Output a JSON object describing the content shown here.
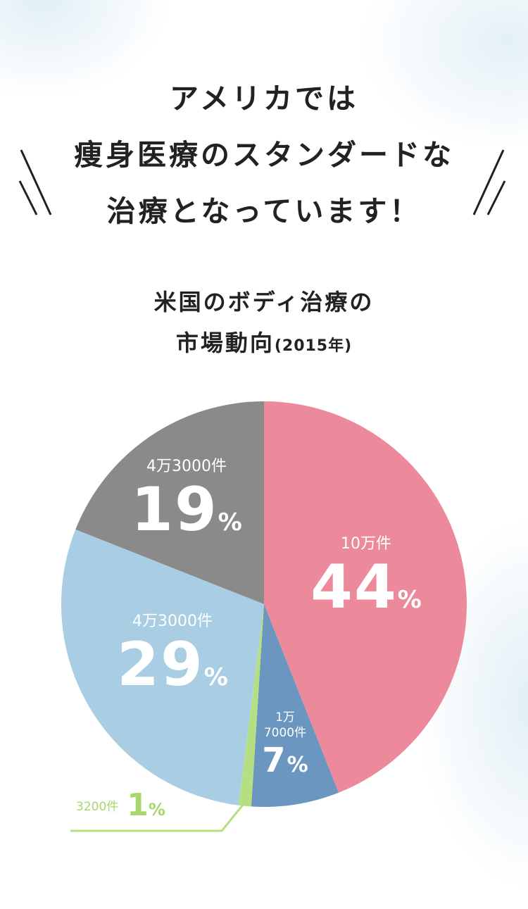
{
  "headline": {
    "line1": "アメリカでは",
    "line2": "痩身医療のスタンダードな",
    "line3": "治療となっています！"
  },
  "chart_title": {
    "line1": "米国のボディ治療の",
    "line2": "市場動向",
    "year": "(2015年)"
  },
  "chart_data": {
    "type": "pie",
    "title": "米国のボディ治療の市場動向(2015年)",
    "start": "12 o'clock, clockwise",
    "slices": [
      {
        "count": "10万件",
        "percent": 44,
        "label": "44",
        "color": "#ec8a9b"
      },
      {
        "count": "1万7000件",
        "percent": 7,
        "label": "7",
        "color": "#6b96bf"
      },
      {
        "count": "3200件",
        "percent": 1,
        "label": "1",
        "color": "#b4df82"
      },
      {
        "count": "4万3000件",
        "percent": 29,
        "label": "29",
        "color": "#a9cde2"
      },
      {
        "count": "4万3000件",
        "percent": 19,
        "label": "19",
        "color": "#8a8a8a"
      }
    ],
    "percent_sign": "%",
    "leader_color": "#b4df82"
  },
  "labels": {
    "s44": {
      "count": "10万件",
      "value": "44",
      "unit": "%"
    },
    "s7": {
      "count_line1": "1万",
      "count_line2": "7000件",
      "value": "7",
      "unit": "%"
    },
    "s1": {
      "count": "3200件",
      "value": "1",
      "unit": "%"
    },
    "s29": {
      "count": "4万3000件",
      "value": "29",
      "unit": "%"
    },
    "s19": {
      "count": "4万3000件",
      "value": "19",
      "unit": "%"
    }
  }
}
